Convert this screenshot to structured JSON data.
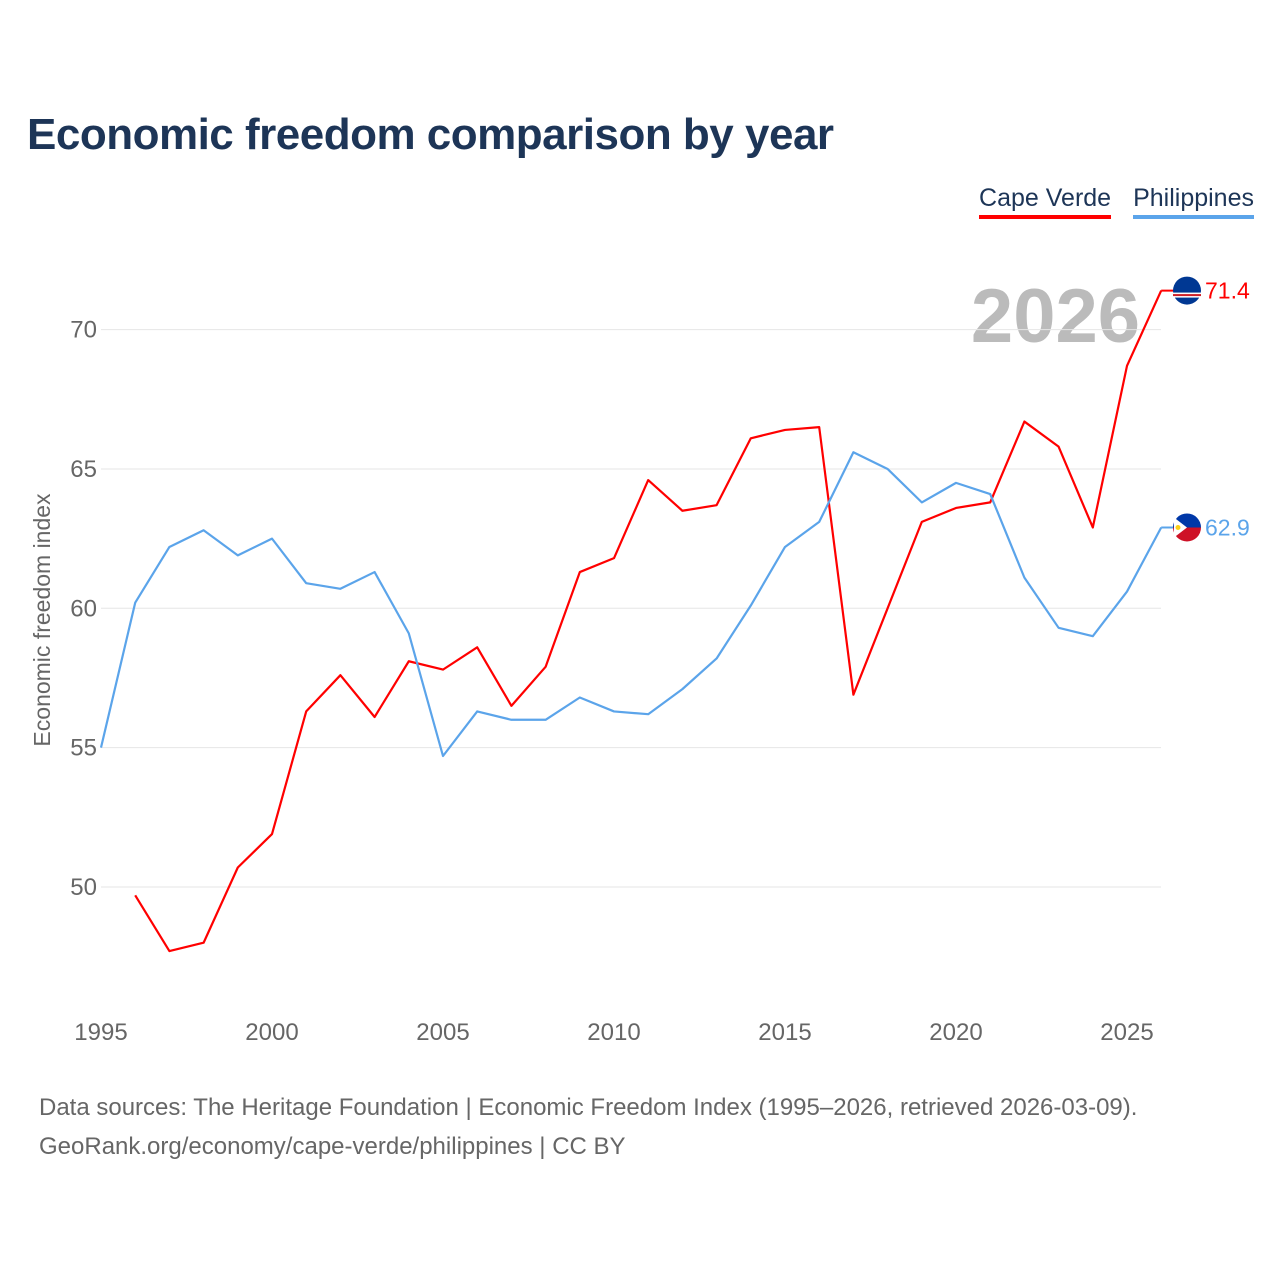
{
  "title": "Economic freedom comparison by year",
  "legend": [
    {
      "name": "Cape Verde",
      "color": "#ff0000"
    },
    {
      "name": "Philippines",
      "color": "#5ba4ea"
    }
  ],
  "year_watermark": "2026",
  "source_line1": "Data sources: The Heritage Foundation | Economic Freedom Index (1995–2026, retrieved 2026-03-09).",
  "source_line2": "GeoRank.org/economy/cape-verde/philippines | CC BY",
  "chart_data": {
    "type": "line",
    "title": "Economic freedom comparison by year",
    "xlabel": "",
    "ylabel": "Economic freedom index",
    "xlim": [
      1995,
      2026
    ],
    "ylim": [
      45.5,
      72
    ],
    "x_ticks": [
      1995,
      2000,
      2005,
      2010,
      2015,
      2020,
      2025
    ],
    "y_ticks": [
      50,
      55,
      60,
      65,
      70
    ],
    "grid": true,
    "legend_position": "top-right",
    "series": [
      {
        "name": "Cape Verde",
        "color": "#ff0000",
        "end_label": "71.4",
        "x": [
          1996,
          1997,
          1998,
          1999,
          2000,
          2001,
          2002,
          2003,
          2004,
          2005,
          2006,
          2007,
          2008,
          2009,
          2010,
          2011,
          2012,
          2013,
          2014,
          2015,
          2016,
          2017,
          2018,
          2019,
          2020,
          2021,
          2022,
          2023,
          2024,
          2025,
          2026
        ],
        "values": [
          49.7,
          47.7,
          48.0,
          50.7,
          51.9,
          56.3,
          57.6,
          56.1,
          58.1,
          57.8,
          58.6,
          56.5,
          57.9,
          61.3,
          61.8,
          64.6,
          63.5,
          63.7,
          66.1,
          66.4,
          66.5,
          56.9,
          60.0,
          63.1,
          63.6,
          63.8,
          66.7,
          65.8,
          62.9,
          68.7,
          71.4
        ]
      },
      {
        "name": "Philippines",
        "color": "#5ba4ea",
        "end_label": "62.9",
        "x": [
          1995,
          1996,
          1997,
          1998,
          1999,
          2000,
          2001,
          2002,
          2003,
          2004,
          2005,
          2006,
          2007,
          2008,
          2009,
          2010,
          2011,
          2012,
          2013,
          2014,
          2015,
          2016,
          2017,
          2018,
          2019,
          2020,
          2021,
          2022,
          2023,
          2024,
          2025,
          2026
        ],
        "values": [
          55.0,
          60.2,
          62.2,
          62.8,
          61.9,
          62.5,
          60.9,
          60.7,
          61.3,
          59.1,
          54.7,
          56.3,
          56.0,
          56.0,
          56.8,
          56.3,
          56.2,
          57.1,
          58.2,
          60.1,
          62.2,
          63.1,
          65.6,
          65.0,
          63.8,
          64.5,
          64.1,
          61.1,
          59.3,
          59.0,
          60.6,
          62.9
        ]
      }
    ]
  }
}
